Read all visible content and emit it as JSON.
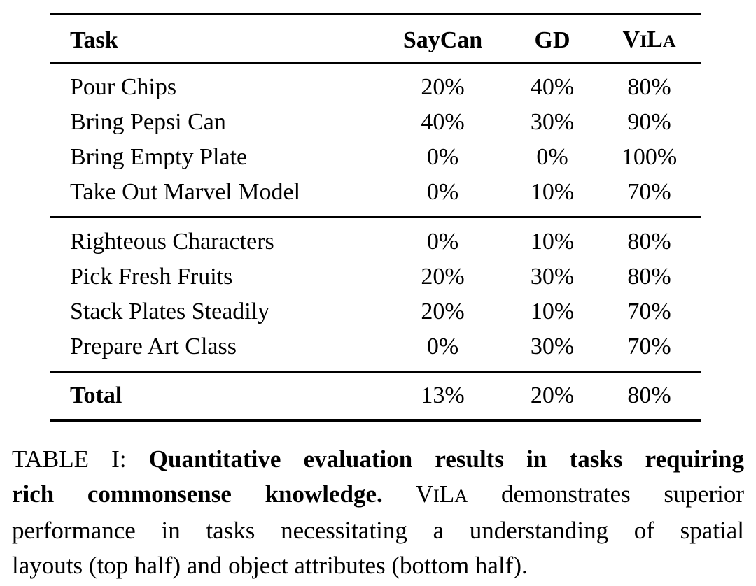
{
  "table": {
    "header": {
      "task": "Task",
      "saycan": "SayCan",
      "gd": "GD",
      "vila": [
        "V",
        "I",
        "L",
        "A"
      ]
    },
    "rows": [
      {
        "task": "Pour Chips",
        "saycan": "20%",
        "gd": "40%",
        "vila": "80%"
      },
      {
        "task": "Bring Pepsi Can",
        "saycan": "40%",
        "gd": "30%",
        "vila": "90%"
      },
      {
        "task": "Bring Empty Plate",
        "saycan": "0%",
        "gd": "0%",
        "vila": "100%"
      },
      {
        "task": "Take Out Marvel Model",
        "saycan": "0%",
        "gd": "10%",
        "vila": "70%"
      },
      {
        "task": "Righteous Characters",
        "saycan": "0%",
        "gd": "10%",
        "vila": "80%"
      },
      {
        "task": "Pick Fresh Fruits",
        "saycan": "20%",
        "gd": "30%",
        "vila": "80%"
      },
      {
        "task": "Stack Plates Steadily",
        "saycan": "20%",
        "gd": "10%",
        "vila": "70%"
      },
      {
        "task": "Prepare Art Class",
        "saycan": "0%",
        "gd": "30%",
        "vila": "70%"
      }
    ],
    "total": {
      "task": "Total",
      "saycan": "13%",
      "gd": "20%",
      "vila": "80%"
    }
  },
  "caption": {
    "label": "TABLE I: ",
    "bold_part1": "Quantitative evaluation results in tasks requiring",
    "bold_part2": "rich commonsense knowledge.",
    "vila": [
      "V",
      "I",
      "L",
      "A"
    ],
    "line2_rest": " demonstrates superior",
    "line3": "performance in tasks necessitating a understanding of spatial",
    "line4": "layouts (top half) and object attributes (bottom half)."
  },
  "colors": {
    "text": "#000000",
    "background": "#ffffff",
    "rule": "#000000"
  }
}
